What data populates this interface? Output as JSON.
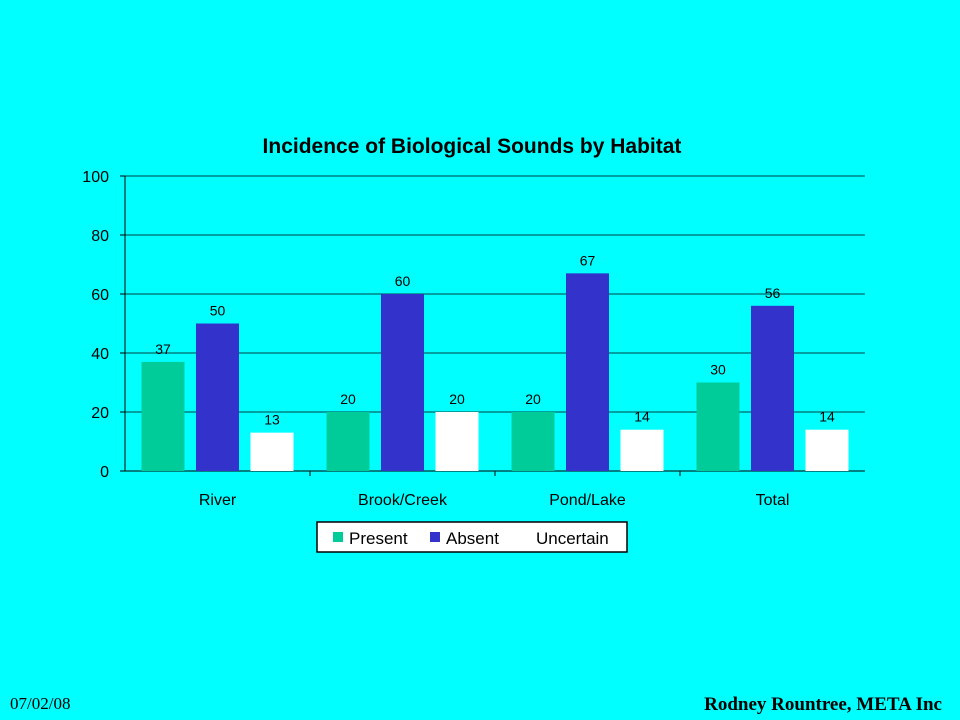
{
  "slide": {
    "date": "07/02/08",
    "credit": "Rodney Rountree, META Inc",
    "background": "#00FFFF"
  },
  "chart_data": {
    "type": "bar",
    "title": "Incidence of Biological Sounds by Habitat",
    "xlabel": "",
    "ylabel": "",
    "categories": [
      "River",
      "Brook/Creek",
      "Pond/Lake",
      "Total"
    ],
    "series": [
      {
        "name": "Present",
        "values": [
          37,
          20,
          20,
          30
        ],
        "color": "#00CC99"
      },
      {
        "name": "Absent",
        "values": [
          50,
          60,
          67,
          56
        ],
        "color": "#3333CC"
      },
      {
        "name": "Uncertain",
        "values": [
          13,
          20,
          14,
          14
        ],
        "color": "#FFFFFF"
      }
    ],
    "ylim": [
      0,
      100
    ],
    "yticks": [
      0,
      20,
      40,
      60,
      80,
      100
    ],
    "grid": true,
    "legend": "bottom",
    "data_labels": true
  }
}
